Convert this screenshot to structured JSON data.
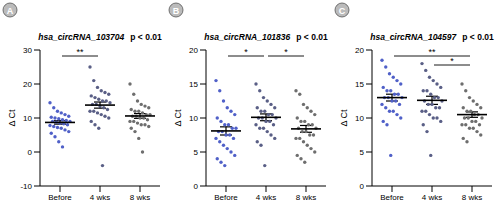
{
  "chart_data": [
    {
      "type": "scatter",
      "panel": "A",
      "title": "hsa_circRNA_103704",
      "subtitle": "p < 0.01",
      "y_label": "Δ Ct",
      "categories": [
        "Before",
        "4 wks",
        "8 wks"
      ],
      "colors": [
        "#5060c8",
        "#5a5f86",
        "#6e6e6e"
      ],
      "points": [
        [
          14.5,
          13,
          12,
          11.5,
          11,
          10.5,
          10.2,
          10,
          9.8,
          9.5,
          9.3,
          9,
          9,
          8.8,
          8.5,
          8.3,
          8,
          7.8,
          7.5,
          7.2,
          7,
          6.5,
          6,
          5.5,
          4.5,
          3,
          1.5
        ],
        [
          25,
          21,
          19,
          18,
          17.5,
          17,
          16.5,
          16,
          15.5,
          15,
          15,
          14.5,
          14,
          14,
          13.5,
          13,
          12.5,
          12,
          12,
          11.5,
          11,
          10.5,
          10,
          9,
          8,
          7,
          -4
        ],
        [
          20,
          17,
          15,
          14,
          13.5,
          13,
          12.5,
          12,
          12,
          11.5,
          11,
          11,
          10.5,
          10.5,
          10,
          10,
          9.5,
          9,
          9,
          8.5,
          8,
          8,
          7.5,
          7,
          6,
          4,
          0
        ]
      ],
      "means": [
        8.7,
        13.8,
        10.6
      ],
      "sems": [
        0.5,
        0.9,
        0.7
      ],
      "ylim": [
        -10,
        30
      ],
      "yticks": [
        -10,
        0,
        10,
        20,
        30
      ],
      "annotations": [
        {
          "from": "Before",
          "to": "4 wks",
          "label": "**"
        }
      ]
    },
    {
      "type": "scatter",
      "panel": "B",
      "title": "hsa_circRNA_101836",
      "subtitle": "p < 0.01",
      "y_label": "Δ Ct",
      "categories": [
        "Before",
        "4 wks",
        "8 wks"
      ],
      "colors": [
        "#5060c8",
        "#5a5f86",
        "#6e6e6e"
      ],
      "points": [
        [
          15.5,
          14,
          12.5,
          11.5,
          11,
          10.5,
          10,
          9.5,
          9,
          9,
          8.5,
          8.5,
          8,
          8,
          7.5,
          7.5,
          7,
          7,
          6.5,
          6,
          5.5,
          5,
          4.5,
          4,
          3.5,
          3
        ],
        [
          15,
          14,
          13,
          12.5,
          12,
          11.5,
          11.5,
          11,
          11,
          10.5,
          10.5,
          10,
          10,
          10,
          9.5,
          9.5,
          9,
          9,
          8.5,
          8.5,
          8,
          7.5,
          7,
          6.5,
          6,
          3
        ],
        [
          14,
          13.5,
          12,
          11.5,
          11,
          10.5,
          10,
          9.5,
          9.5,
          9,
          9,
          8.5,
          8.5,
          8,
          8,
          7.5,
          7.5,
          7,
          7,
          6.5,
          6,
          5.5,
          5,
          4.5,
          4,
          3.5
        ]
      ],
      "means": [
        8.1,
        10.1,
        8.4
      ],
      "sems": [
        0.6,
        0.5,
        0.5
      ],
      "ylim": [
        0,
        20
      ],
      "yticks": [
        0,
        5,
        10,
        15,
        20
      ],
      "annotations": [
        {
          "from": "Before",
          "to": "4 wks",
          "label": "*"
        },
        {
          "from": "4 wks",
          "to": "8 wks",
          "label": "*"
        }
      ]
    },
    {
      "type": "scatter",
      "panel": "C",
      "title": "hsa_circRNA_104597",
      "subtitle": "p < 0.01",
      "y_label": "Δ Ct",
      "categories": [
        "Before",
        "4 wks",
        "8 wks"
      ],
      "colors": [
        "#5060c8",
        "#5a5f86",
        "#6e6e6e"
      ],
      "points": [
        [
          18.5,
          17.5,
          16.5,
          16,
          15.5,
          15,
          14.5,
          14,
          14,
          13.5,
          13.5,
          13,
          13,
          13,
          12.5,
          12.5,
          12,
          12,
          11.5,
          11,
          11,
          10.5,
          10,
          9.5,
          9,
          4.5
        ],
        [
          18,
          17,
          16,
          15.5,
          15,
          14.5,
          14,
          14,
          13.5,
          13,
          13,
          12.5,
          12.5,
          12,
          12,
          11.5,
          11.5,
          11,
          11,
          10.5,
          10,
          10,
          9.5,
          9,
          8,
          4.5
        ],
        [
          15,
          14,
          13,
          12.5,
          12,
          11.5,
          11.5,
          11,
          11,
          10.5,
          10.5,
          10,
          10,
          10,
          9.5,
          9.5,
          9,
          9,
          9,
          8.5,
          8.5,
          8,
          7.5,
          7,
          6.5
        ]
      ],
      "means": [
        13.0,
        12.6,
        10.5
      ],
      "sems": [
        0.5,
        0.6,
        0.4
      ],
      "ylim": [
        0,
        20
      ],
      "yticks": [
        0,
        5,
        10,
        15,
        20
      ],
      "annotations": [
        {
          "from": "Before",
          "to": "8 wks",
          "label": "**"
        },
        {
          "from": "4 wks",
          "to": "8 wks",
          "label": "*"
        }
      ]
    }
  ]
}
